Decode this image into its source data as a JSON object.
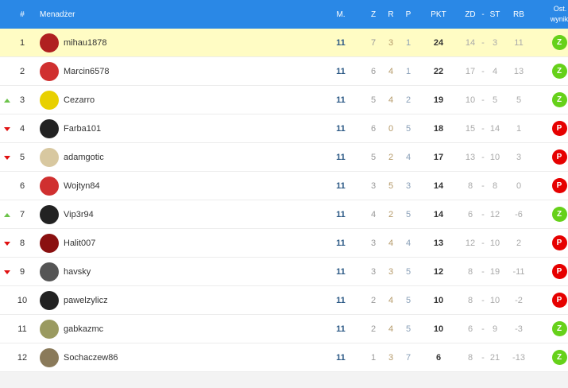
{
  "header": {
    "rank": "#",
    "manager": "Menadżer",
    "m": "M.",
    "z": "Z",
    "r": "R",
    "p": "P",
    "pkt": "PKT",
    "zd": "ZD",
    "dash": "-",
    "st": "ST",
    "rb": "RB",
    "last": "Ost. wyniki"
  },
  "colors": {
    "header": "#2a88e6",
    "highlight": "#fffcc4",
    "win": "#66d11a",
    "loss": "#e60000",
    "trend_up": "#6cc34a",
    "trend_down": "#e01010"
  },
  "rows": [
    {
      "rank": "1",
      "trend": "",
      "name": "mihau1878",
      "avatar": "#b02020",
      "m": "11",
      "z": "7",
      "r": "3",
      "p": "1",
      "pkt": "24",
      "zd": "14",
      "st": "3",
      "rb": "11",
      "last": "Z"
    },
    {
      "rank": "2",
      "trend": "",
      "name": "Marcin6578",
      "avatar": "#d03030",
      "m": "11",
      "z": "6",
      "r": "4",
      "p": "1",
      "pkt": "22",
      "zd": "17",
      "st": "4",
      "rb": "13",
      "last": "Z"
    },
    {
      "rank": "3",
      "trend": "up",
      "name": "Cezarro",
      "avatar": "#e8d000",
      "m": "11",
      "z": "5",
      "r": "4",
      "p": "2",
      "pkt": "19",
      "zd": "10",
      "st": "5",
      "rb": "5",
      "last": "Z"
    },
    {
      "rank": "4",
      "trend": "down",
      "name": "Farba101",
      "avatar": "#222222",
      "m": "11",
      "z": "6",
      "r": "0",
      "p": "5",
      "pkt": "18",
      "zd": "15",
      "st": "14",
      "rb": "1",
      "last": "P"
    },
    {
      "rank": "5",
      "trend": "down",
      "name": "adamgotic",
      "avatar": "#d8c8a0",
      "m": "11",
      "z": "5",
      "r": "2",
      "p": "4",
      "pkt": "17",
      "zd": "13",
      "st": "10",
      "rb": "3",
      "last": "P"
    },
    {
      "rank": "6",
      "trend": "",
      "name": "Wojtyn84",
      "avatar": "#d03030",
      "m": "11",
      "z": "3",
      "r": "5",
      "p": "3",
      "pkt": "14",
      "zd": "8",
      "st": "8",
      "rb": "0",
      "last": "P"
    },
    {
      "rank": "7",
      "trend": "up",
      "name": "Vip3r94",
      "avatar": "#222222",
      "m": "11",
      "z": "4",
      "r": "2",
      "p": "5",
      "pkt": "14",
      "zd": "6",
      "st": "12",
      "rb": "-6",
      "last": "Z"
    },
    {
      "rank": "8",
      "trend": "down",
      "name": "Halit007",
      "avatar": "#8a1010",
      "m": "11",
      "z": "3",
      "r": "4",
      "p": "4",
      "pkt": "13",
      "zd": "12",
      "st": "10",
      "rb": "2",
      "last": "P"
    },
    {
      "rank": "9",
      "trend": "down",
      "name": "havsky",
      "avatar": "#555555",
      "m": "11",
      "z": "3",
      "r": "3",
      "p": "5",
      "pkt": "12",
      "zd": "8",
      "st": "19",
      "rb": "-11",
      "last": "P"
    },
    {
      "rank": "10",
      "trend": "",
      "name": "pawelzylicz",
      "avatar": "#222222",
      "m": "11",
      "z": "2",
      "r": "4",
      "p": "5",
      "pkt": "10",
      "zd": "8",
      "st": "10",
      "rb": "-2",
      "last": "P"
    },
    {
      "rank": "11",
      "trend": "",
      "name": "gabkazmc",
      "avatar": "#9a9a60",
      "m": "11",
      "z": "2",
      "r": "4",
      "p": "5",
      "pkt": "10",
      "zd": "6",
      "st": "9",
      "rb": "-3",
      "last": "Z"
    },
    {
      "rank": "12",
      "trend": "",
      "name": "Sochaczew86",
      "avatar": "#8a7a5a",
      "m": "11",
      "z": "1",
      "r": "3",
      "p": "7",
      "pkt": "6",
      "zd": "8",
      "st": "21",
      "rb": "-13",
      "last": "Z"
    }
  ]
}
